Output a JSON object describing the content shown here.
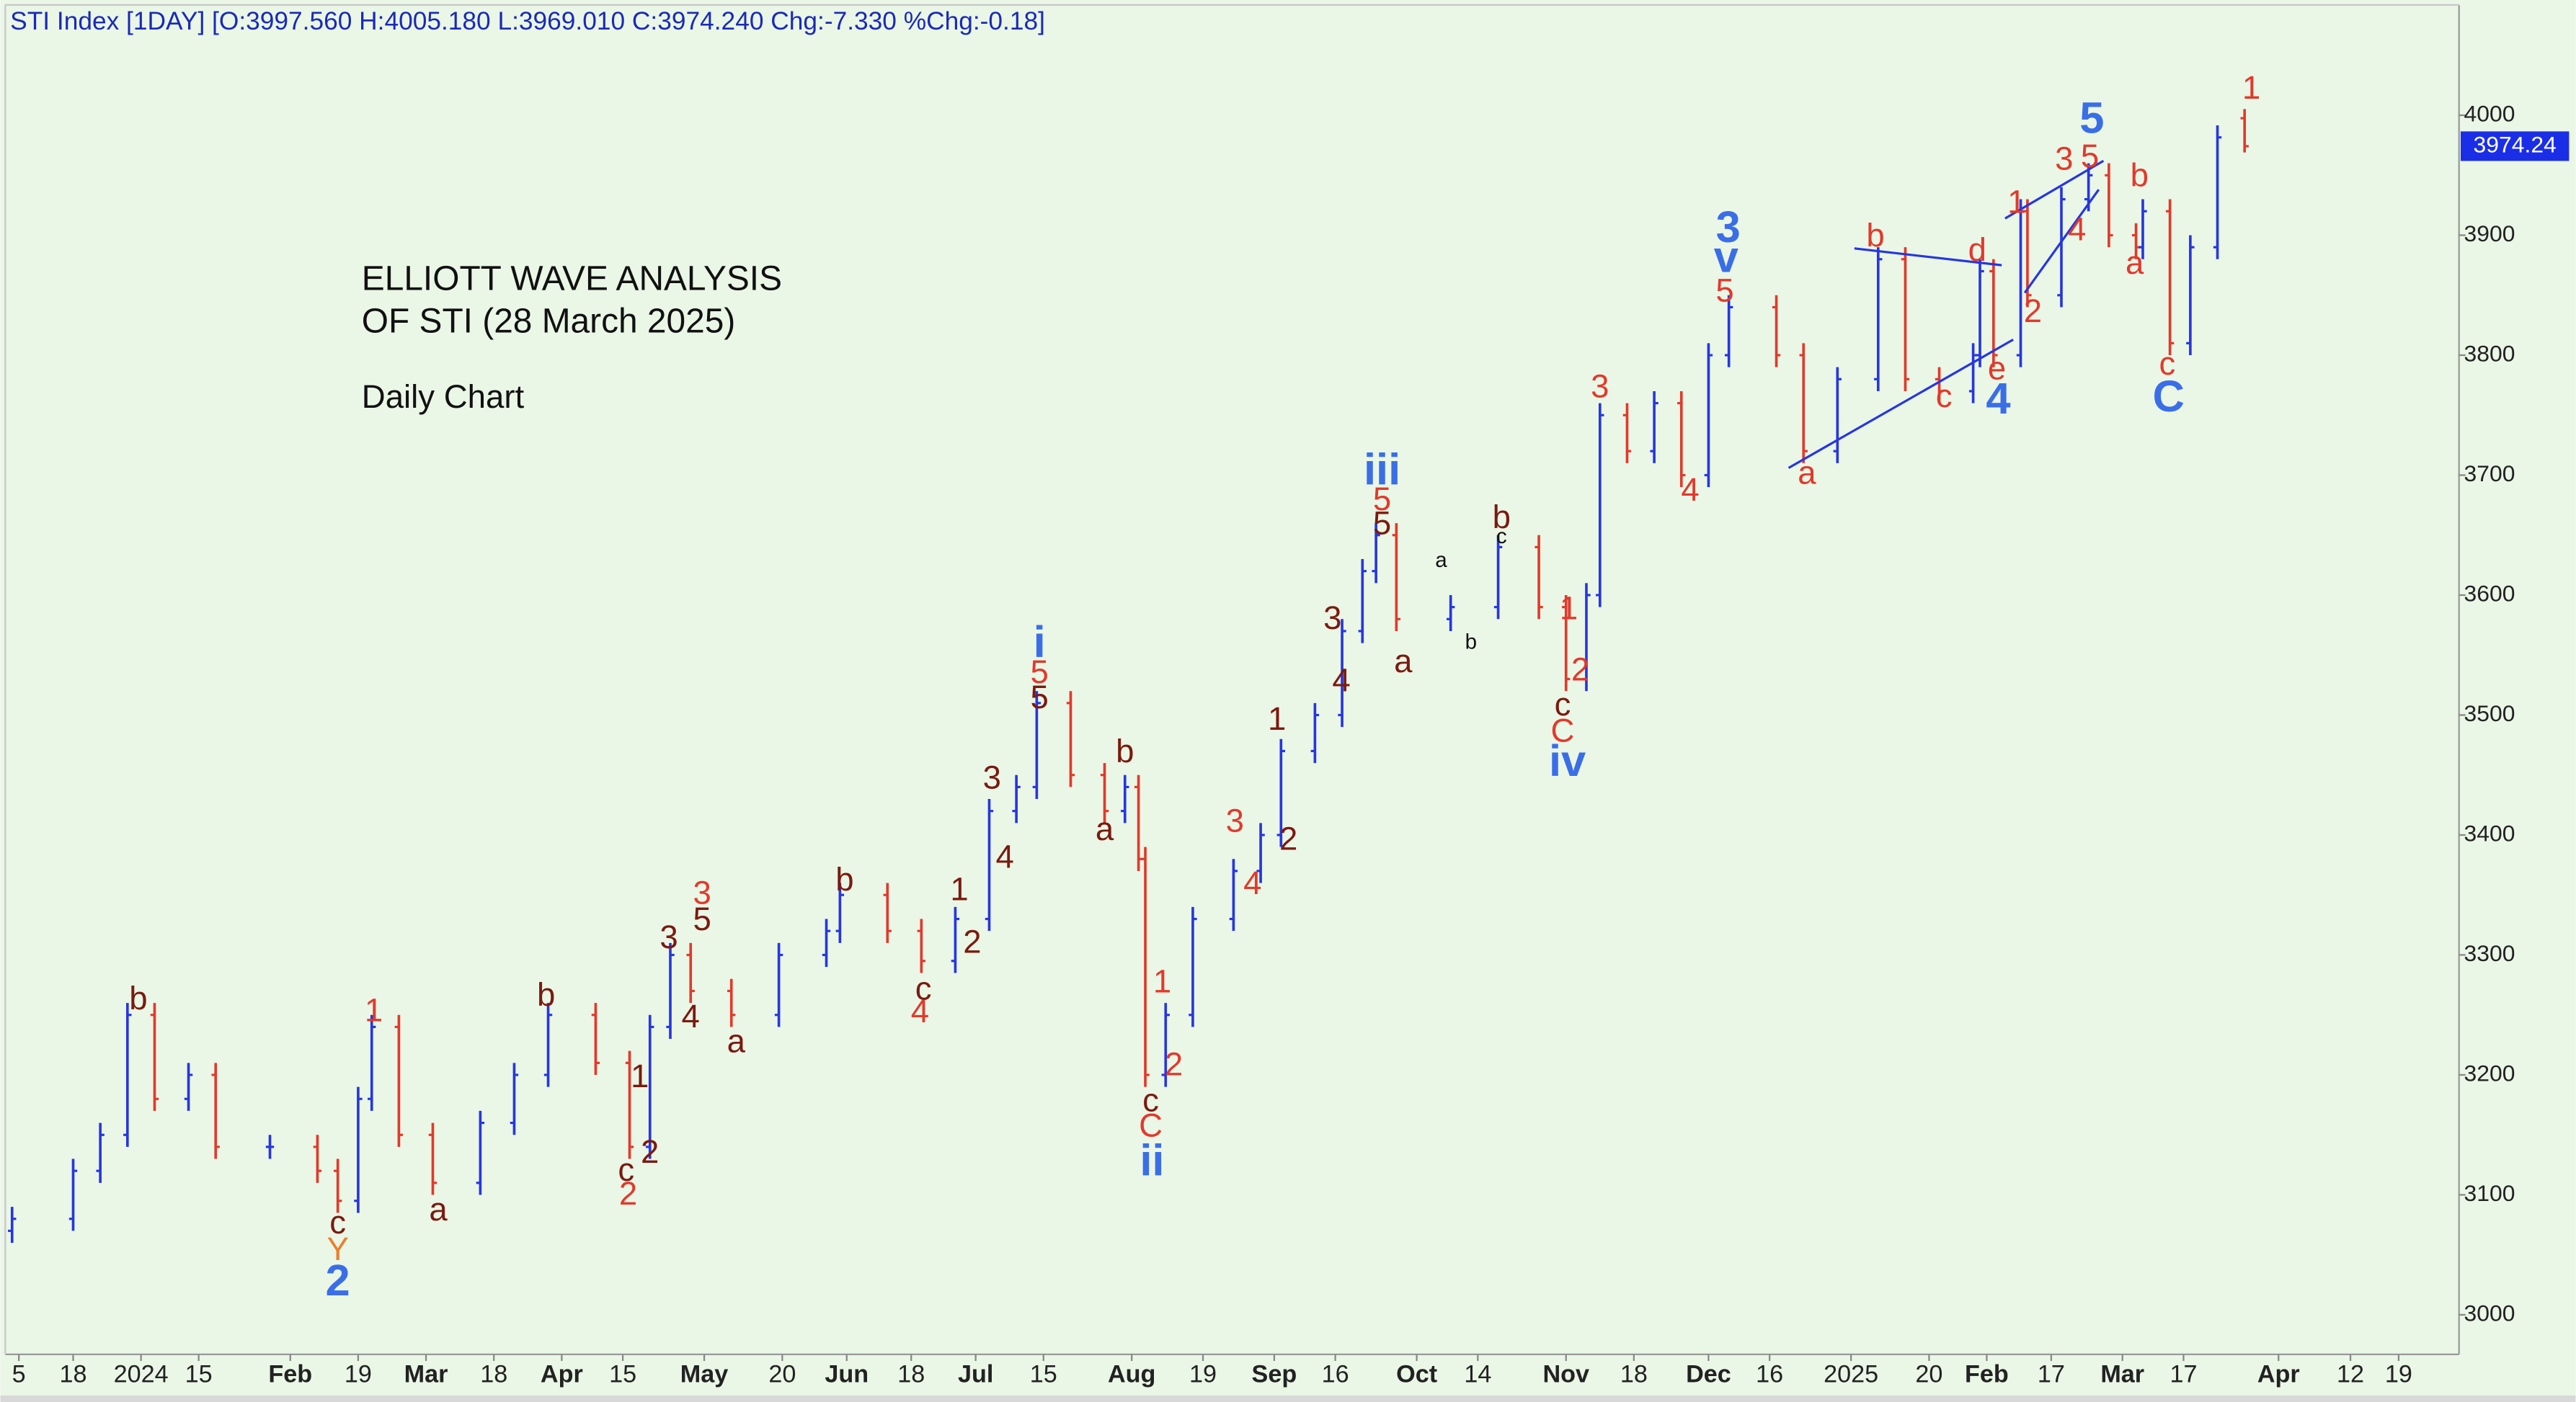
{
  "chart_data": {
    "type": "ohlc",
    "header": "STI Index [1DAY] [O:3997.560 H:4005.180 L:3969.010 C:3974.240 Chg:-7.330 %Chg:-0.18]",
    "title_lines": [
      "ELLIOTT WAVE ANALYSIS",
      "OF STI (28 March 2025)"
    ],
    "subtitle": "Daily Chart",
    "up_color": "#2636e0",
    "down_color": "#e2392b",
    "last_price": 3974.24,
    "last_price_color": "#1a2ee8",
    "xlim": [
      0,
      361.6
    ],
    "ylim": [
      2967,
      4092
    ],
    "yticks": [
      3000,
      3100,
      3200,
      3300,
      3400,
      3500,
      3600,
      3700,
      3800,
      3900,
      4000
    ],
    "xticks": [
      {
        "value": 2,
        "label": "5"
      },
      {
        "value": 10,
        "label": "18"
      },
      {
        "value": 20,
        "label": "2024"
      },
      {
        "value": 28.5,
        "label": "15"
      },
      {
        "value": 42,
        "label": "Feb"
      },
      {
        "value": 52,
        "label": "19"
      },
      {
        "value": 62,
        "label": "Mar"
      },
      {
        "value": 72,
        "label": "18"
      },
      {
        "value": 82,
        "label": "Apr"
      },
      {
        "value": 91,
        "label": "15"
      },
      {
        "value": 103,
        "label": "May"
      },
      {
        "value": 114.5,
        "label": "20"
      },
      {
        "value": 124,
        "label": "Jun"
      },
      {
        "value": 133.5,
        "label": "18"
      },
      {
        "value": 143,
        "label": "Jul"
      },
      {
        "value": 153,
        "label": "15"
      },
      {
        "value": 166,
        "label": "Aug"
      },
      {
        "value": 176.5,
        "label": "19"
      },
      {
        "value": 187,
        "label": "Sep"
      },
      {
        "value": 196,
        "label": "16"
      },
      {
        "value": 208,
        "label": "Oct"
      },
      {
        "value": 217,
        "label": "14"
      },
      {
        "value": 230,
        "label": "Nov"
      },
      {
        "value": 240,
        "label": "18"
      },
      {
        "value": 251,
        "label": "Dec"
      },
      {
        "value": 260,
        "label": "16"
      },
      {
        "value": 272,
        "label": "2025"
      },
      {
        "value": 283.5,
        "label": "20"
      },
      {
        "value": 292,
        "label": "Feb"
      },
      {
        "value": 301.5,
        "label": "17"
      },
      {
        "value": 312,
        "label": "Mar"
      },
      {
        "value": 321,
        "label": "17"
      },
      {
        "value": 335,
        "label": "Apr"
      },
      {
        "value": 345.6,
        "label": "12"
      },
      {
        "value": 352.7,
        "label": "19"
      }
    ],
    "x": [
      1,
      10,
      14,
      18,
      22,
      27,
      31,
      39,
      46,
      49,
      52,
      54,
      58,
      63,
      70,
      75,
      80,
      87,
      92,
      95,
      98,
      101,
      107,
      114,
      121,
      123,
      130,
      135,
      140,
      145,
      149,
      152,
      157,
      162,
      165,
      167,
      168,
      171,
      175,
      181,
      185,
      188,
      193,
      197,
      200,
      202,
      205,
      213,
      220,
      226,
      230,
      233,
      235,
      239,
      243,
      247,
      251,
      254,
      261,
      265,
      270,
      276,
      280,
      285,
      290,
      291,
      293,
      297,
      298,
      303,
      307,
      310,
      314,
      315,
      319,
      322,
      326,
      330
    ],
    "open": [
      3070,
      3080,
      3120,
      3150,
      3250,
      3180,
      3200,
      3140,
      3140,
      3120,
      3095,
      3180,
      3240,
      3150,
      3110,
      3160,
      3200,
      3250,
      3210,
      3140,
      3240,
      3300,
      3270,
      3250,
      3300,
      3320,
      3350,
      3320,
      3295,
      3330,
      3420,
      3440,
      3510,
      3450,
      3420,
      3440,
      3380,
      3200,
      3250,
      3330,
      3370,
      3400,
      3470,
      3500,
      3570,
      3620,
      3650,
      3580,
      3590,
      3640,
      3590,
      3530,
      3600,
      3750,
      3720,
      3760,
      3700,
      3800,
      3840,
      3800,
      3720,
      3780,
      3880,
      3780,
      3770,
      3800,
      3870,
      3800,
      3920,
      3850,
      3930,
      3950,
      3900,
      3890,
      3920,
      3810,
      3890,
      3997.56
    ],
    "high": [
      3090,
      3130,
      3160,
      3260,
      3260,
      3210,
      3210,
      3150,
      3150,
      3130,
      3190,
      3250,
      3250,
      3160,
      3170,
      3210,
      3260,
      3260,
      3220,
      3250,
      3310,
      3310,
      3280,
      3310,
      3330,
      3360,
      3360,
      3330,
      3340,
      3430,
      3450,
      3520,
      3520,
      3460,
      3450,
      3450,
      3390,
      3260,
      3340,
      3380,
      3410,
      3480,
      3510,
      3580,
      3630,
      3660,
      3660,
      3600,
      3650,
      3650,
      3600,
      3610,
      3760,
      3760,
      3770,
      3770,
      3810,
      3850,
      3850,
      3810,
      3790,
      3890,
      3890,
      3790,
      3810,
      3880,
      3880,
      3930,
      3930,
      3940,
      3960,
      3960,
      3910,
      3930,
      3930,
      3900,
      3991.57,
      4005.18
    ],
    "low": [
      3060,
      3070,
      3110,
      3140,
      3170,
      3170,
      3130,
      3130,
      3110,
      3085,
      3085,
      3170,
      3140,
      3100,
      3100,
      3150,
      3190,
      3200,
      3130,
      3130,
      3230,
      3260,
      3240,
      3240,
      3290,
      3310,
      3310,
      3285,
      3285,
      3320,
      3410,
      3430,
      3440,
      3410,
      3410,
      3370,
      3190,
      3190,
      3240,
      3320,
      3360,
      3390,
      3460,
      3490,
      3560,
      3610,
      3570,
      3570,
      3580,
      3580,
      3520,
      3520,
      3590,
      3710,
      3710,
      3690,
      3690,
      3790,
      3790,
      3710,
      3710,
      3770,
      3770,
      3760,
      3760,
      3790,
      3790,
      3790,
      3840,
      3840,
      3920,
      3890,
      3880,
      3880,
      3800,
      3800,
      3880,
      3969.01
    ],
    "close": [
      3080,
      3120,
      3150,
      3250,
      3180,
      3200,
      3140,
      3140,
      3120,
      3095,
      3180,
      3240,
      3150,
      3110,
      3160,
      3200,
      3250,
      3210,
      3140,
      3240,
      3300,
      3270,
      3250,
      3300,
      3320,
      3350,
      3320,
      3295,
      3330,
      3420,
      3440,
      3510,
      3450,
      3420,
      3440,
      3380,
      3200,
      3250,
      3330,
      3370,
      3400,
      3470,
      3500,
      3570,
      3620,
      3650,
      3580,
      3590,
      3640,
      3590,
      3530,
      3600,
      3750,
      3720,
      3760,
      3700,
      3800,
      3840,
      3800,
      3720,
      3780,
      3880,
      3780,
      3770,
      3800,
      3870,
      3800,
      3920,
      3850,
      3930,
      3950,
      3900,
      3890,
      3920,
      3810,
      3890,
      3981.57,
      3974.24
    ],
    "trendlines": [
      {
        "color": "#2636e0",
        "x": [
          262.8,
          295.9
        ],
        "y": [
          3706,
          3813
        ]
      },
      {
        "color": "#2636e0",
        "x": [
          272.5,
          294.2
        ],
        "y": [
          3889,
          3875
        ]
      },
      {
        "color": "#2636e0",
        "x": [
          294.7,
          309.2
        ],
        "y": [
          3914,
          3962
        ]
      },
      {
        "color": "#2636e0",
        "x": [
          297.6,
          308.5
        ],
        "y": [
          3852,
          3938
        ]
      }
    ],
    "annotations": [
      {
        "text": "b",
        "x": 19.6,
        "y": 3262,
        "color": "#7a1a10"
      },
      {
        "text": "c",
        "x": 49,
        "y": 3075,
        "color": "#7a1a10"
      },
      {
        "text": "Y",
        "x": 49,
        "y": 3053,
        "color": "#e8812e"
      },
      {
        "text": "2",
        "x": 49,
        "y": 3026,
        "color": "#3a6ee8"
      },
      {
        "text": "1",
        "x": 54.3,
        "y": 3252,
        "color": "#e2392b"
      },
      {
        "text": "a",
        "x": 63.8,
        "y": 3086,
        "color": "#7a1a10"
      },
      {
        "text": "b",
        "x": 79.7,
        "y": 3265,
        "color": "#7a1a10"
      },
      {
        "text": "1",
        "x": 93.5,
        "y": 3197,
        "color": "#7a1a10"
      },
      {
        "text": "c",
        "x": 91.5,
        "y": 3119,
        "color": "#7a1a10"
      },
      {
        "text": "2",
        "x": 95,
        "y": 3134,
        "color": "#7a1a10"
      },
      {
        "text": "2",
        "x": 91.8,
        "y": 3099,
        "color": "#e2392b"
      },
      {
        "text": "3",
        "x": 97.8,
        "y": 3313,
        "color": "#7a1a10"
      },
      {
        "text": "3",
        "x": 102.7,
        "y": 3350,
        "color": "#e2392b"
      },
      {
        "text": "5",
        "x": 102.7,
        "y": 3328,
        "color": "#7a1a10"
      },
      {
        "text": "4",
        "x": 101,
        "y": 3247,
        "color": "#7a1a10"
      },
      {
        "text": "a",
        "x": 107.7,
        "y": 3226,
        "color": "#7a1a10"
      },
      {
        "text": "b",
        "x": 123.7,
        "y": 3361,
        "color": "#7a1a10"
      },
      {
        "text": "1",
        "x": 140.6,
        "y": 3353,
        "color": "#7a1a10"
      },
      {
        "text": "2",
        "x": 142.5,
        "y": 3309,
        "color": "#7a1a10"
      },
      {
        "text": "c",
        "x": 135.3,
        "y": 3270,
        "color": "#7a1a10"
      },
      {
        "text": "4",
        "x": 134.8,
        "y": 3251,
        "color": "#e2392b"
      },
      {
        "text": "3",
        "x": 145.4,
        "y": 3446,
        "color": "#7a1a10"
      },
      {
        "text": "4",
        "x": 147.3,
        "y": 3380,
        "color": "#7a1a10"
      },
      {
        "text": "i",
        "x": 152.4,
        "y": 3558,
        "color": "#3a6ee8"
      },
      {
        "text": "5",
        "x": 152.4,
        "y": 3534,
        "color": "#e2392b"
      },
      {
        "text": "5",
        "x": 152.4,
        "y": 3513,
        "color": "#7a1a10"
      },
      {
        "text": "b",
        "x": 165,
        "y": 3468,
        "color": "#7a1a10"
      },
      {
        "text": "a",
        "x": 162,
        "y": 3403,
        "color": "#7a1a10"
      },
      {
        "text": "1",
        "x": 170.5,
        "y": 3276,
        "color": "#e2392b"
      },
      {
        "text": "2",
        "x": 172.2,
        "y": 3207,
        "color": "#e2392b"
      },
      {
        "text": "c",
        "x": 168.8,
        "y": 3177,
        "color": "#7a1a10"
      },
      {
        "text": "C",
        "x": 168.8,
        "y": 3156,
        "color": "#e2392b"
      },
      {
        "text": "ii",
        "x": 169,
        "y": 3126,
        "color": "#3a6ee8"
      },
      {
        "text": "3",
        "x": 181.2,
        "y": 3410,
        "color": "#e2392b"
      },
      {
        "text": "4",
        "x": 183.8,
        "y": 3358,
        "color": "#e2392b"
      },
      {
        "text": "2",
        "x": 189.1,
        "y": 3395,
        "color": "#7a1a10"
      },
      {
        "text": "1",
        "x": 187.4,
        "y": 3495,
        "color": "#7a1a10"
      },
      {
        "text": "3",
        "x": 195.6,
        "y": 3579,
        "color": "#7a1a10"
      },
      {
        "text": "4",
        "x": 196.9,
        "y": 3527,
        "color": "#7a1a10"
      },
      {
        "text": "iii",
        "x": 202.9,
        "y": 3702,
        "color": "#3a6ee8"
      },
      {
        "text": "5",
        "x": 202.9,
        "y": 3678,
        "color": "#e2392b"
      },
      {
        "text": "5",
        "x": 202.9,
        "y": 3658,
        "color": "#7a1a10"
      },
      {
        "text": "a",
        "x": 206,
        "y": 3543,
        "color": "#7a1a10"
      },
      {
        "text": "a",
        "x": 211.6,
        "y": 3628,
        "color": "#111111"
      },
      {
        "text": "b",
        "x": 216,
        "y": 3560,
        "color": "#111111"
      },
      {
        "text": "c",
        "x": 220.5,
        "y": 3648,
        "color": "#111111"
      },
      {
        "text": "b",
        "x": 220.5,
        "y": 3663,
        "color": "#7a1a10"
      },
      {
        "text": "1",
        "x": 230.4,
        "y": 3587,
        "color": "#e2392b"
      },
      {
        "text": "2",
        "x": 232.1,
        "y": 3536,
        "color": "#e2392b"
      },
      {
        "text": "c",
        "x": 229.5,
        "y": 3507,
        "color": "#7a1a10"
      },
      {
        "text": "C",
        "x": 229.5,
        "y": 3485,
        "color": "#e2392b"
      },
      {
        "text": "iv",
        "x": 230.2,
        "y": 3459,
        "color": "#3a6ee8"
      },
      {
        "text": "3",
        "x": 235,
        "y": 3772,
        "color": "#e2392b"
      },
      {
        "text": "4",
        "x": 248.3,
        "y": 3686,
        "color": "#e2392b"
      },
      {
        "text": "3",
        "x": 253.9,
        "y": 3904,
        "color": "#3a6ee8"
      },
      {
        "text": "v",
        "x": 253.6,
        "y": 3879,
        "color": "#3a6ee8"
      },
      {
        "text": "5",
        "x": 253.4,
        "y": 3852,
        "color": "#e2392b"
      },
      {
        "text": "a",
        "x": 265.5,
        "y": 3700,
        "color": "#e2392b"
      },
      {
        "text": "b",
        "x": 275.6,
        "y": 3898,
        "color": "#e2392b"
      },
      {
        "text": "c",
        "x": 285.7,
        "y": 3764,
        "color": "#e2392b"
      },
      {
        "text": "d",
        "x": 290.6,
        "y": 3886,
        "color": "#e2392b"
      },
      {
        "text": "e",
        "x": 293.5,
        "y": 3787,
        "color": "#e2392b"
      },
      {
        "text": "4",
        "x": 293.7,
        "y": 3761,
        "color": "#3a6ee8"
      },
      {
        "text": "1",
        "x": 296.4,
        "y": 3926,
        "color": "#e2392b"
      },
      {
        "text": "2",
        "x": 298.8,
        "y": 3835,
        "color": "#e2392b"
      },
      {
        "text": "3",
        "x": 303.4,
        "y": 3962,
        "color": "#e2392b"
      },
      {
        "text": "5",
        "x": 307.2,
        "y": 3964,
        "color": "#e2392b"
      },
      {
        "text": "4",
        "x": 305.3,
        "y": 3903,
        "color": "#e2392b"
      },
      {
        "text": "5",
        "x": 307.5,
        "y": 3995,
        "color": "#3a6ee8"
      },
      {
        "text": "b",
        "x": 314.5,
        "y": 3948,
        "color": "#e2392b"
      },
      {
        "text": "a",
        "x": 313.8,
        "y": 3875,
        "color": "#e2392b"
      },
      {
        "text": "c",
        "x": 318.6,
        "y": 3791,
        "color": "#e2392b"
      },
      {
        "text": "C",
        "x": 318.8,
        "y": 3763,
        "color": "#3a6ee8"
      },
      {
        "text": "1",
        "x": 331,
        "y": 4021,
        "color": "#e2392b"
      }
    ]
  }
}
